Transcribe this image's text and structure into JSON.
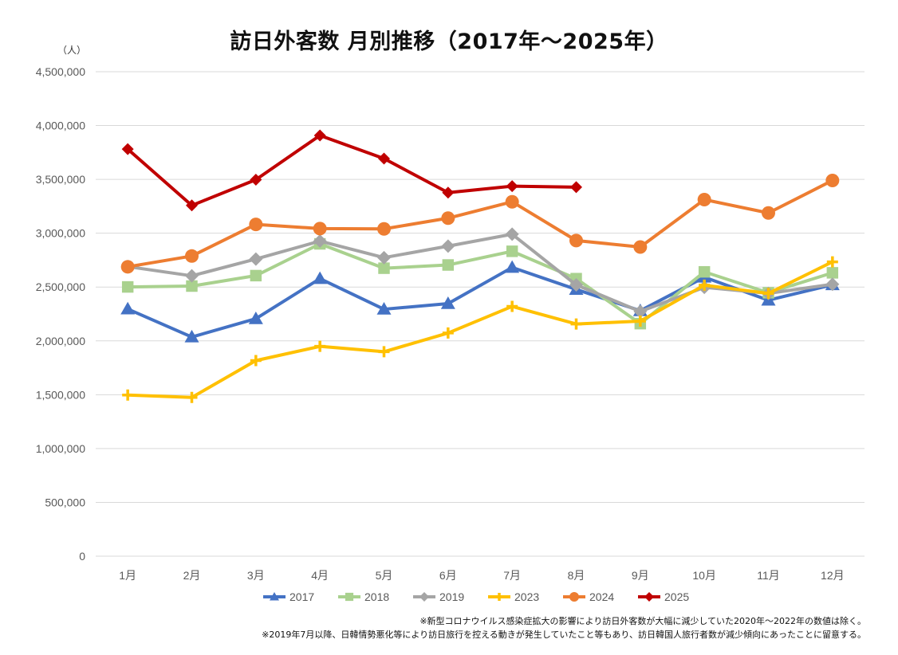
{
  "chart_data": {
    "type": "line",
    "title": "訪日外客数 月別推移（2017年～2025年）",
    "ylabel": "（人）",
    "categories": [
      "1月",
      "2月",
      "3月",
      "4月",
      "5月",
      "6月",
      "7月",
      "8月",
      "9月",
      "10月",
      "11月",
      "12月"
    ],
    "ylim": [
      0,
      4500000
    ],
    "yticks": [
      0,
      500000,
      1000000,
      1500000,
      2000000,
      2500000,
      3000000,
      3500000,
      4000000,
      4500000
    ],
    "ytick_labels": [
      "0",
      "500,000",
      "1,000,000",
      "1,500,000",
      "2,000,000",
      "2,500,000",
      "3,000,000",
      "3,500,000",
      "4,000,000",
      "4,500,000"
    ],
    "grid": true,
    "legend": "bottom",
    "series": [
      {
        "name": "2017",
        "color": "#4472C4",
        "marker": "triangle",
        "values": [
          2296000,
          2036000,
          2206000,
          2578000,
          2294000,
          2346000,
          2682000,
          2478000,
          2280000,
          2591000,
          2378000,
          2521000
        ]
      },
      {
        "name": "2018",
        "color": "#A9D18E",
        "marker": "square",
        "values": [
          2501000,
          2509000,
          2606000,
          2901000,
          2675000,
          2705000,
          2832000,
          2578000,
          2160000,
          2641000,
          2447000,
          2632000
        ]
      },
      {
        "name": "2019",
        "color": "#A5A5A5",
        "marker": "diamond",
        "values": [
          2690000,
          2604000,
          2760000,
          2927000,
          2773000,
          2880000,
          2991000,
          2520000,
          2273000,
          2497000,
          2441000,
          2526000
        ]
      },
      {
        "name": "2023",
        "color": "#FFC000",
        "marker": "plus",
        "values": [
          1497000,
          1475000,
          1817000,
          1949000,
          1899000,
          2073000,
          2320000,
          2157000,
          2183000,
          2517000,
          2441000,
          2734000
        ]
      },
      {
        "name": "2024",
        "color": "#ED7D31",
        "marker": "circle",
        "values": [
          2688000,
          2788000,
          3082000,
          3043000,
          3040000,
          3140000,
          3292000,
          2932000,
          2872000,
          3312000,
          3188000,
          3490000
        ]
      },
      {
        "name": "2025",
        "color": "#C00000",
        "marker": "diamond",
        "values": [
          3781000,
          3258000,
          3497000,
          3908000,
          3693000,
          3377000,
          3437000,
          3428000,
          null,
          null,
          null,
          null
        ]
      }
    ]
  },
  "notes": [
    "※新型コロナウイルス感染症拡大の影響により訪日外客数が大幅に減少していた2020年～2022年の数値は除く。",
    "※2019年7月以降、日韓情勢悪化等により訪日旅行を控える動きが発生していたこと等もあり、訪日韓国人旅行者数が減少傾向にあったことに留意する。"
  ]
}
